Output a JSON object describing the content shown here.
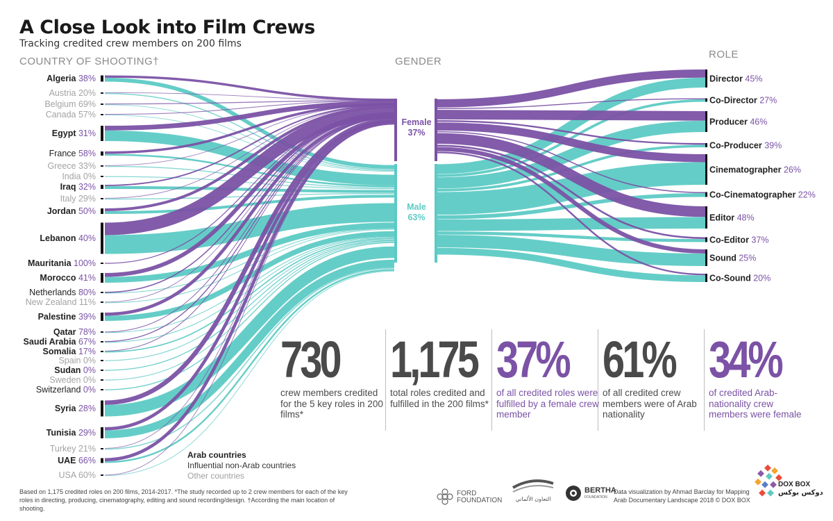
{
  "header": {
    "title": "A Close Look into Film Crews",
    "subtitle": "Tracking credited crew members on 200 films"
  },
  "colors": {
    "female": "#7b52a5",
    "male": "#5dcac4",
    "text_dark": "#222222",
    "text_muted": "#9a9a9a"
  },
  "chart_data": {
    "type": "sankey",
    "columns": {
      "country": "COUNTRY OF SHOOTING†",
      "gender": "GENDER",
      "role": "ROLE"
    },
    "countries": [
      {
        "name": "Algeria",
        "female_pct": "38%",
        "group": "arab"
      },
      {
        "name": "Austria",
        "female_pct": "20%",
        "group": "other"
      },
      {
        "name": "Belgium",
        "female_pct": "69%",
        "group": "other"
      },
      {
        "name": "Canada",
        "female_pct": "57%",
        "group": "other"
      },
      {
        "name": "Egypt",
        "female_pct": "31%",
        "group": "arab"
      },
      {
        "name": "France",
        "female_pct": "58%",
        "group": "influential"
      },
      {
        "name": "Greece",
        "female_pct": "33%",
        "group": "other"
      },
      {
        "name": "India",
        "female_pct": "0%",
        "group": "other"
      },
      {
        "name": "Iraq",
        "female_pct": "32%",
        "group": "arab"
      },
      {
        "name": "Italy",
        "female_pct": "29%",
        "group": "other"
      },
      {
        "name": "Jordan",
        "female_pct": "50%",
        "group": "arab"
      },
      {
        "name": "Lebanon",
        "female_pct": "40%",
        "group": "arab"
      },
      {
        "name": "Mauritania",
        "female_pct": "100%",
        "group": "arab"
      },
      {
        "name": "Morocco",
        "female_pct": "41%",
        "group": "arab"
      },
      {
        "name": "Netherlands",
        "female_pct": "80%",
        "group": "influential"
      },
      {
        "name": "New Zealand",
        "female_pct": "11%",
        "group": "other"
      },
      {
        "name": "Palestine",
        "female_pct": "39%",
        "group": "arab"
      },
      {
        "name": "Qatar",
        "female_pct": "78%",
        "group": "arab"
      },
      {
        "name": "Saudi Arabia",
        "female_pct": "67%",
        "group": "arab"
      },
      {
        "name": "Somalia",
        "female_pct": "17%",
        "group": "arab"
      },
      {
        "name": "Spain",
        "female_pct": "0%",
        "group": "other"
      },
      {
        "name": "Sudan",
        "female_pct": "0%",
        "group": "arab"
      },
      {
        "name": "Sweden",
        "female_pct": "0%",
        "group": "other"
      },
      {
        "name": "Switzerland",
        "female_pct": "0%",
        "group": "influential"
      },
      {
        "name": "Syria",
        "female_pct": "28%",
        "group": "arab"
      },
      {
        "name": "Tunisia",
        "female_pct": "29%",
        "group": "arab"
      },
      {
        "name": "Turkey",
        "female_pct": "21%",
        "group": "other"
      },
      {
        "name": "UAE",
        "female_pct": "66%",
        "group": "arab"
      },
      {
        "name": "USA",
        "female_pct": "60%",
        "group": "other"
      }
    ],
    "gender": [
      {
        "name": "Female",
        "pct": "37%"
      },
      {
        "name": "Male",
        "pct": "63%"
      }
    ],
    "roles": [
      {
        "name": "Director",
        "female_pct": "45%"
      },
      {
        "name": "Co-Director",
        "female_pct": "27%"
      },
      {
        "name": "Producer",
        "female_pct": "46%"
      },
      {
        "name": "Co-Producer",
        "female_pct": "39%"
      },
      {
        "name": "Cinematographer",
        "female_pct": "26%"
      },
      {
        "name": "Co-Cinematographer",
        "female_pct": "22%"
      },
      {
        "name": "Editor",
        "female_pct": "48%"
      },
      {
        "name": "Co-Editor",
        "female_pct": "37%"
      },
      {
        "name": "Sound",
        "female_pct": "25%"
      },
      {
        "name": "Co-Sound",
        "female_pct": "20%"
      }
    ],
    "legend": [
      "Arab countries",
      "Influential non-Arab countries",
      "Other countries"
    ]
  },
  "stats": [
    {
      "value": "730",
      "caption": "crew members credited for the 5 key roles in 200 films*",
      "color": "#4a4a4a"
    },
    {
      "value": "1,175",
      "caption": "total roles credited and fulfilled in the 200 films*",
      "color": "#4a4a4a"
    },
    {
      "value": "37%",
      "caption": "of all credited roles were fulfilled by a female crew member",
      "color": "#7b52a5"
    },
    {
      "value": "61%",
      "caption": "of all credited crew members were of Arab nationality",
      "color": "#4a4a4a"
    },
    {
      "value": "34%",
      "caption": "of credited Arab-nationality crew members were female",
      "color": "#7b52a5"
    }
  ],
  "footer": {
    "footnote": "Based on 1,175 credited roles on 200 films, 2014-2017. *The study recorded up to 2 crew members for each of the key roles in directing, producing, cinematography, editing and sound recording/design. †According the main location of shooting.",
    "credit": "Data visualization by Ahmad Barclay for Mapping Arab Documentary Landscape 2018 © DOX BOX",
    "logos": {
      "ford": "FORD FOUNDATION",
      "bertha": "BERTHA",
      "bertha_sub": "FOUNDATION",
      "taawon": "التعاون الألماني",
      "doxbox": "DOX BOX",
      "doxbox_ar": "دوكس بوكس"
    }
  }
}
